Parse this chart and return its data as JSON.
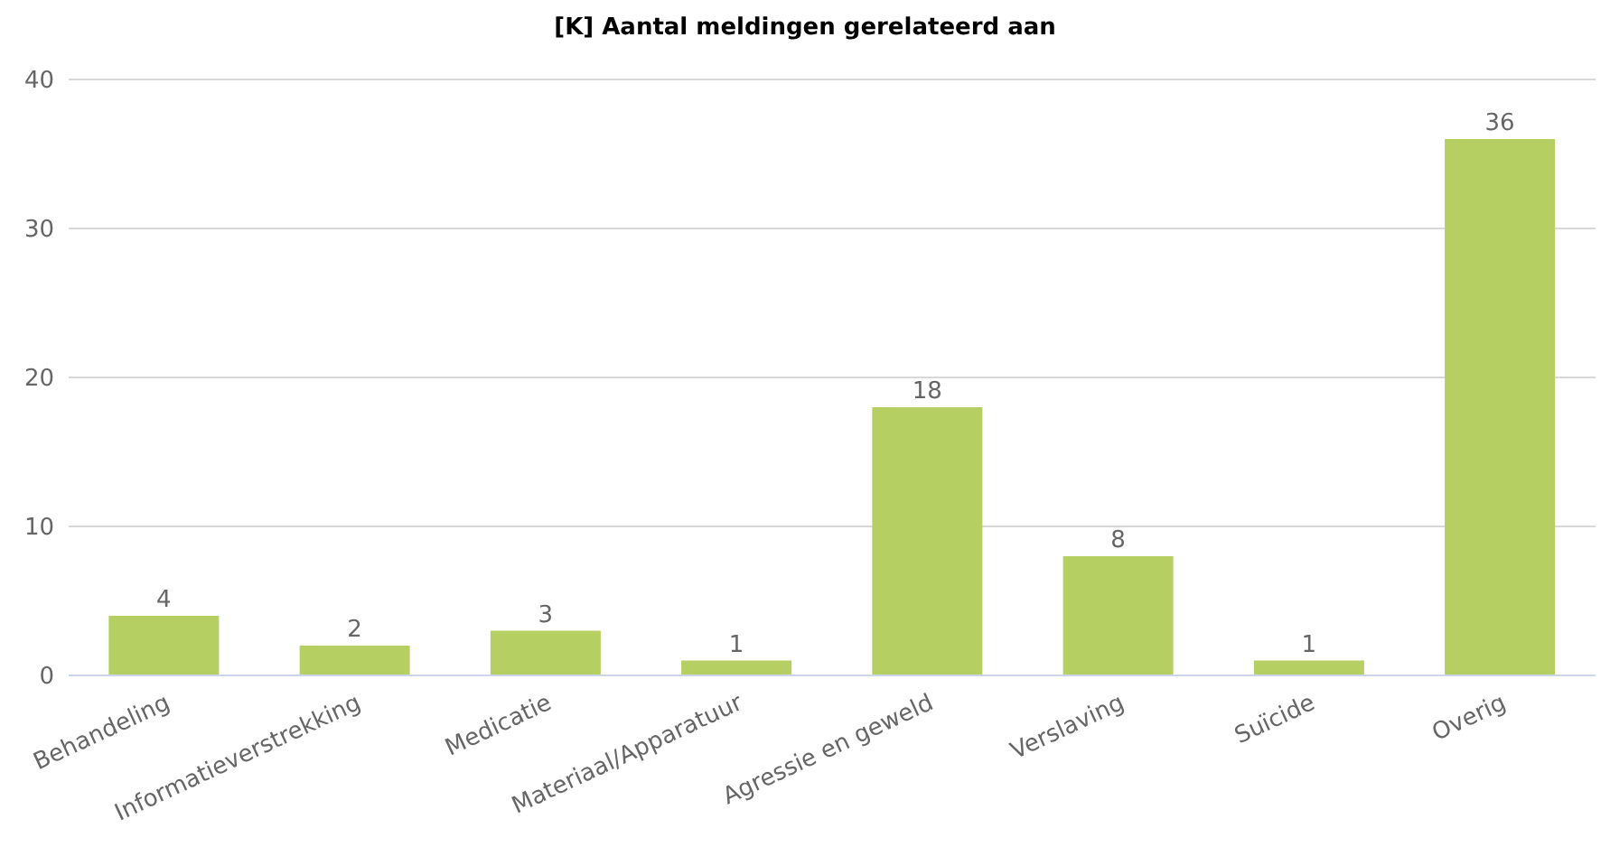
{
  "chart_data": {
    "type": "bar",
    "title": "[K] Aantal meldingen gerelateerd aan",
    "categories": [
      "Behandeling",
      "Informatieverstrekking",
      "Medicatie",
      "Materiaal/Apparatuur",
      "Agressie en geweld",
      "Verslaving",
      "Suïcide",
      "Overig"
    ],
    "values": [
      4,
      2,
      3,
      1,
      18,
      8,
      1,
      36
    ],
    "color": "#b5cf62",
    "ylim": [
      0,
      40
    ],
    "yticks": [
      0,
      10,
      20,
      30,
      40
    ],
    "grid": "y",
    "data_labels": true,
    "legend": false
  }
}
